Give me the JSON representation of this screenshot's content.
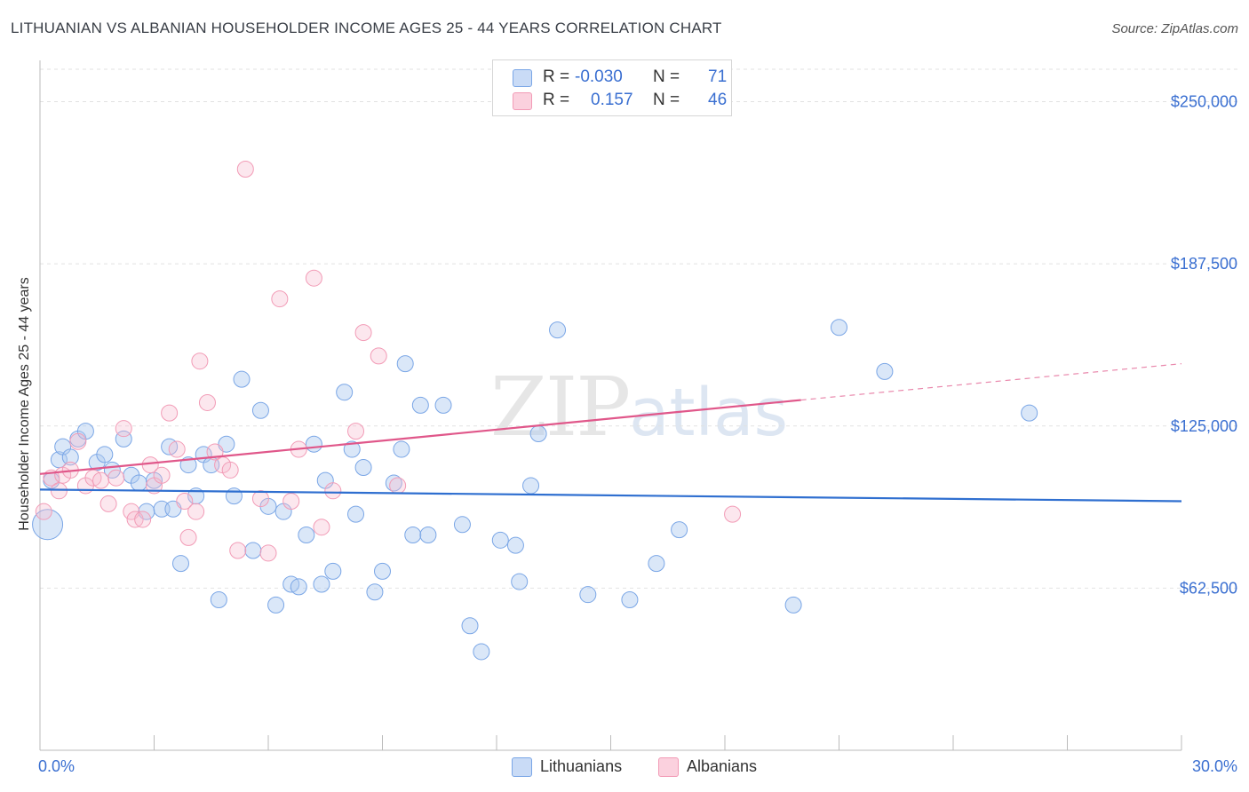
{
  "header": {
    "title": "LITHUANIAN VS ALBANIAN HOUSEHOLDER INCOME AGES 25 - 44 YEARS CORRELATION CHART",
    "source": "Source: ZipAtlas.com"
  },
  "watermark": {
    "zip": "ZIP",
    "atlas": "atlas"
  },
  "legend": {
    "rows": [
      {
        "r_label": "R =",
        "r_value": "-0.030",
        "n_label": "N =",
        "n_value": "71",
        "color": "#aec9f0"
      },
      {
        "r_label": "R =",
        "r_value": "0.157",
        "n_label": "N =",
        "n_value": "46",
        "color": "#f6b9cd"
      }
    ]
  },
  "bottom_legend": {
    "series1": "Lithuanians",
    "series2": "Albanians"
  },
  "chart_data": {
    "type": "scatter",
    "title": "LITHUANIAN VS ALBANIAN HOUSEHOLDER INCOME AGES 25 - 44 YEARS CORRELATION CHART",
    "xlabel": "",
    "ylabel": "Householder Income Ages 25 - 44 years",
    "xlim": [
      0,
      30
    ],
    "ylim": [
      0,
      262500
    ],
    "x_tick_labels": [
      "0.0%",
      "30.0%"
    ],
    "y_ticks": [
      62500,
      125000,
      187500,
      250000
    ],
    "y_tick_labels": [
      "$62,500",
      "$125,000",
      "$187,500",
      "$250,000"
    ],
    "grid": true,
    "legend_position": "top-center",
    "series": [
      {
        "name": "Lithuanians",
        "color": "#7aa6e6",
        "trend": {
          "x": [
            0,
            30
          ],
          "y": [
            100500,
            96000
          ],
          "color": "#2f6fd0"
        },
        "points": [
          [
            0.2,
            87000
          ],
          [
            0.3,
            104000
          ],
          [
            0.5,
            112000
          ],
          [
            0.6,
            117000
          ],
          [
            0.8,
            113000
          ],
          [
            1.0,
            120000
          ],
          [
            1.2,
            123000
          ],
          [
            1.5,
            111000
          ],
          [
            1.7,
            114000
          ],
          [
            1.9,
            108000
          ],
          [
            2.2,
            120000
          ],
          [
            2.4,
            106000
          ],
          [
            2.6,
            103000
          ],
          [
            2.8,
            92000
          ],
          [
            3.0,
            104000
          ],
          [
            3.2,
            93000
          ],
          [
            3.4,
            117000
          ],
          [
            3.5,
            93000
          ],
          [
            3.7,
            72000
          ],
          [
            3.9,
            110000
          ],
          [
            4.1,
            98000
          ],
          [
            4.3,
            114000
          ],
          [
            4.5,
            110000
          ],
          [
            4.7,
            58000
          ],
          [
            4.9,
            118000
          ],
          [
            5.1,
            98000
          ],
          [
            5.3,
            143000
          ],
          [
            5.6,
            77000
          ],
          [
            5.8,
            131000
          ],
          [
            6.0,
            94000
          ],
          [
            6.2,
            56000
          ],
          [
            6.4,
            92000
          ],
          [
            6.6,
            64000
          ],
          [
            6.8,
            63000
          ],
          [
            7.0,
            83000
          ],
          [
            7.2,
            118000
          ],
          [
            7.4,
            64000
          ],
          [
            7.5,
            104000
          ],
          [
            7.7,
            69000
          ],
          [
            8.0,
            138000
          ],
          [
            8.2,
            116000
          ],
          [
            8.3,
            91000
          ],
          [
            8.5,
            109000
          ],
          [
            8.8,
            61000
          ],
          [
            9.0,
            69000
          ],
          [
            9.3,
            103000
          ],
          [
            9.5,
            116000
          ],
          [
            9.6,
            149000
          ],
          [
            9.8,
            83000
          ],
          [
            10.0,
            133000
          ],
          [
            10.2,
            83000
          ],
          [
            10.6,
            133000
          ],
          [
            11.1,
            87000
          ],
          [
            11.3,
            48000
          ],
          [
            11.6,
            38000
          ],
          [
            12.1,
            81000
          ],
          [
            12.5,
            79000
          ],
          [
            12.6,
            65000
          ],
          [
            12.9,
            102000
          ],
          [
            13.1,
            122000
          ],
          [
            13.6,
            162000
          ],
          [
            14.4,
            60000
          ],
          [
            15.5,
            58000
          ],
          [
            16.2,
            72000
          ],
          [
            16.8,
            85000
          ],
          [
            19.8,
            56000
          ],
          [
            21.0,
            163000
          ],
          [
            22.2,
            146000
          ],
          [
            26.0,
            130000
          ]
        ]
      },
      {
        "name": "Albanians",
        "color": "#f29bb6",
        "trend": {
          "x": [
            0,
            20
          ],
          "y": [
            106500,
            135000
          ],
          "dashed_to": [
            30,
            149000
          ],
          "color": "#e0578a"
        },
        "points": [
          [
            0.1,
            92000
          ],
          [
            0.3,
            105000
          ],
          [
            0.5,
            100000
          ],
          [
            0.6,
            106000
          ],
          [
            0.8,
            108000
          ],
          [
            1.0,
            119000
          ],
          [
            1.2,
            102000
          ],
          [
            1.4,
            105000
          ],
          [
            1.6,
            104000
          ],
          [
            1.8,
            95000
          ],
          [
            2.0,
            105000
          ],
          [
            2.2,
            124000
          ],
          [
            2.4,
            92000
          ],
          [
            2.5,
            89000
          ],
          [
            2.7,
            89000
          ],
          [
            2.9,
            110000
          ],
          [
            3.0,
            102000
          ],
          [
            3.2,
            106000
          ],
          [
            3.4,
            130000
          ],
          [
            3.6,
            116000
          ],
          [
            3.8,
            96000
          ],
          [
            3.9,
            82000
          ],
          [
            4.1,
            92000
          ],
          [
            4.2,
            150000
          ],
          [
            4.4,
            134000
          ],
          [
            4.6,
            115000
          ],
          [
            4.8,
            110000
          ],
          [
            5.0,
            108000
          ],
          [
            5.2,
            77000
          ],
          [
            5.4,
            224000
          ],
          [
            5.8,
            97000
          ],
          [
            6.0,
            76000
          ],
          [
            6.3,
            174000
          ],
          [
            6.6,
            96000
          ],
          [
            6.8,
            116000
          ],
          [
            7.2,
            182000
          ],
          [
            7.4,
            86000
          ],
          [
            7.7,
            100000
          ],
          [
            8.3,
            123000
          ],
          [
            8.5,
            161000
          ],
          [
            8.9,
            152000
          ],
          [
            9.4,
            102000
          ],
          [
            18.2,
            91000
          ]
        ]
      }
    ]
  }
}
